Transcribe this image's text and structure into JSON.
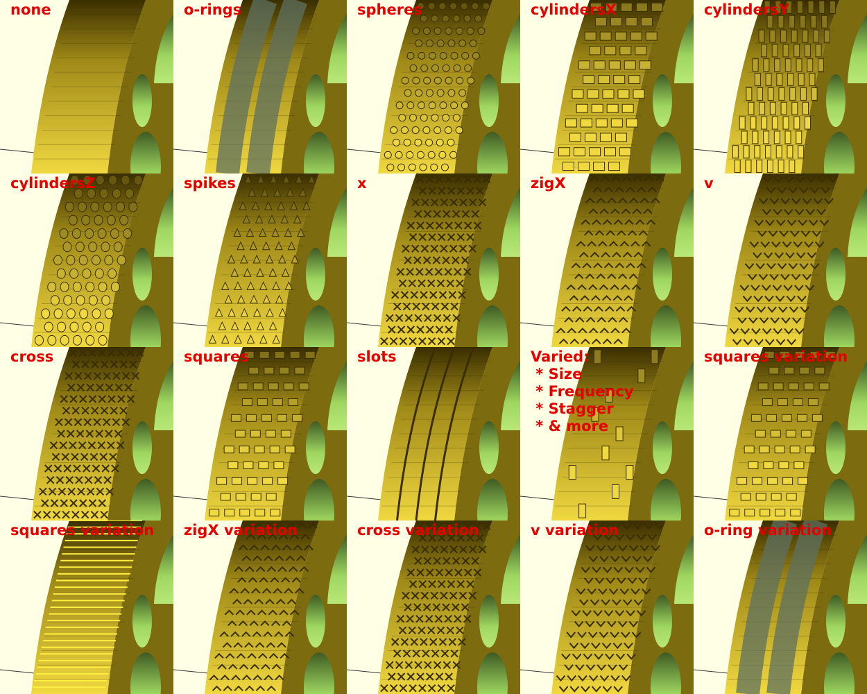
{
  "tiles": [
    {
      "label": "none",
      "pattern": "none",
      "ring": false
    },
    {
      "label": "o-rings",
      "pattern": "orings",
      "ring": true
    },
    {
      "label": "spheres",
      "pattern": "spheres",
      "ring": false
    },
    {
      "label": "cylindersX",
      "pattern": "cylX",
      "ring": false
    },
    {
      "label": "cylindersY",
      "pattern": "cylY",
      "ring": false
    },
    {
      "label": "cylindersZ",
      "pattern": "cylZ",
      "ring": false
    },
    {
      "label": "spikes",
      "pattern": "spikes",
      "ring": false
    },
    {
      "label": "x",
      "pattern": "x",
      "ring": false
    },
    {
      "label": "zigX",
      "pattern": "zig",
      "ring": false
    },
    {
      "label": "v",
      "pattern": "v",
      "ring": false
    },
    {
      "label": "cross",
      "pattern": "cross",
      "ring": false
    },
    {
      "label": "squares",
      "pattern": "squares",
      "ring": false
    },
    {
      "label": "slots",
      "pattern": "slots",
      "ring": false
    },
    {
      "label": "Varied:\n * Size\n * Frequency\n * Stagger\n * & more",
      "pattern": "varied",
      "ring": false
    },
    {
      "label": "squares variation",
      "pattern": "squares2",
      "ring": false
    },
    {
      "label": "squares variation",
      "pattern": "stripes",
      "ring": false
    },
    {
      "label": "zigX variation",
      "pattern": "zig2",
      "ring": false
    },
    {
      "label": "cross variation",
      "pattern": "cross2",
      "ring": false
    },
    {
      "label": "v variation",
      "pattern": "v2",
      "ring": false
    },
    {
      "label": "o-ring variation",
      "pattern": "orings",
      "ring": true
    }
  ],
  "colors": {
    "background": "#ffffe5",
    "label": "#e60000",
    "gold_light": "#f0d840",
    "gold_dark": "#3a2e00",
    "rim": "#7d6b10",
    "hole": "#9ed660",
    "ring": "#5e7060"
  }
}
